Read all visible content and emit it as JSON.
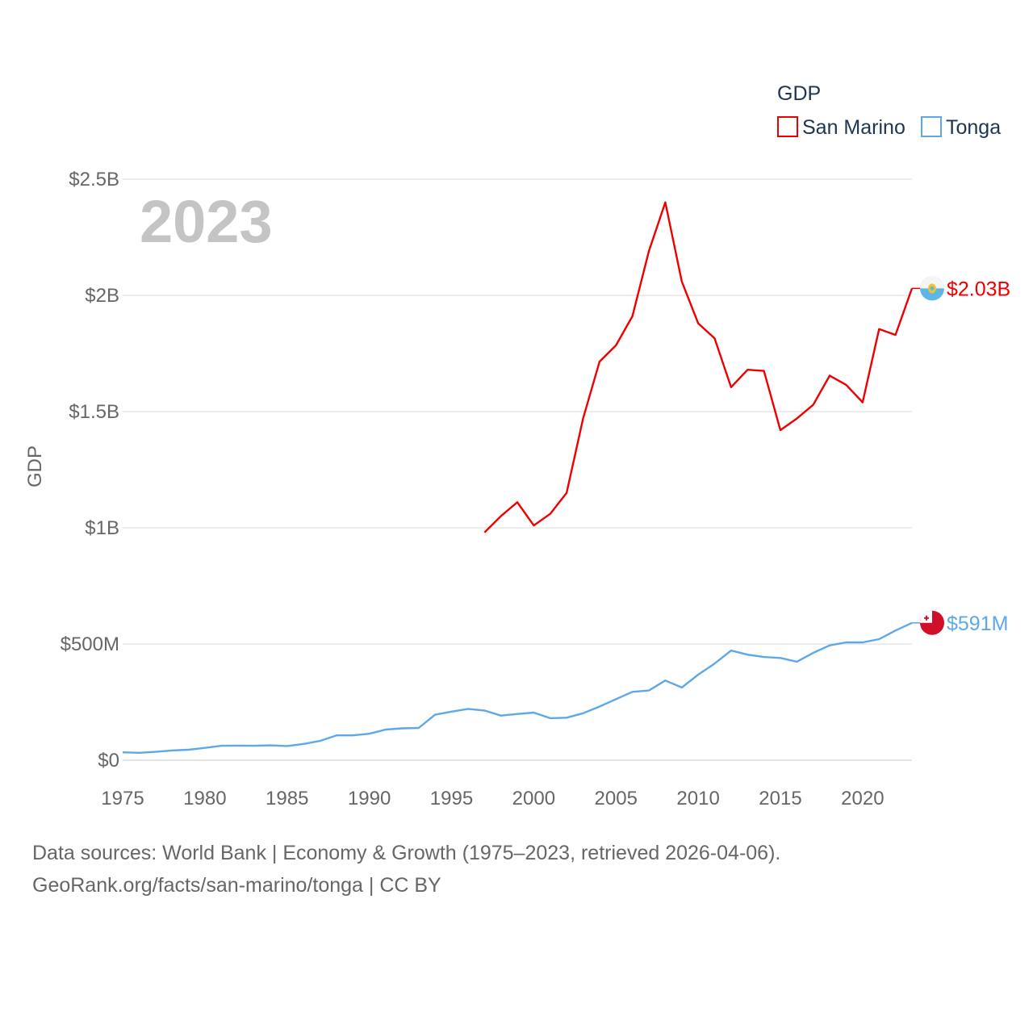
{
  "chart_data": {
    "type": "line",
    "year_label": "2023",
    "ylabel": "GDP",
    "ylim": [
      0,
      2500000000
    ],
    "xlim": [
      1975,
      2023
    ],
    "y_ticks": [
      {
        "value": 0,
        "label": "$0"
      },
      {
        "value": 500000000,
        "label": "$500M"
      },
      {
        "value": 1000000000,
        "label": "$1B"
      },
      {
        "value": 1500000000,
        "label": "$1.5B"
      },
      {
        "value": 2000000000,
        "label": "$2B"
      },
      {
        "value": 2500000000,
        "label": "$2.5B"
      }
    ],
    "x_ticks": [
      1975,
      1980,
      1985,
      1990,
      1995,
      2000,
      2005,
      2010,
      2015,
      2020
    ],
    "legend": {
      "title": "GDP",
      "position": "top-right"
    },
    "series": [
      {
        "name": "San Marino",
        "color": "#ee0000",
        "end_label": "$2.03B",
        "flag_icon": "san-marino-flag-icon",
        "x": [
          1997,
          1998,
          1999,
          2000,
          2001,
          2002,
          2003,
          2004,
          2005,
          2006,
          2007,
          2008,
          2009,
          2010,
          2011,
          2012,
          2013,
          2014,
          2015,
          2016,
          2017,
          2018,
          2019,
          2020,
          2021,
          2022,
          2023
        ],
        "values": [
          980000000,
          1050000000,
          1110000000,
          1010000000,
          1060000000,
          1150000000,
          1470000000,
          1715000000,
          1785000000,
          1910000000,
          2190000000,
          2400000000,
          2060000000,
          1880000000,
          1815000000,
          1605000000,
          1680000000,
          1675000000,
          1420000000,
          1470000000,
          1530000000,
          1655000000,
          1615000000,
          1540000000,
          1855000000,
          1830000000,
          2030000000
        ]
      },
      {
        "name": "Tonga",
        "color": "#5ea8e8",
        "end_label": "$591M",
        "flag_icon": "tonga-flag-icon",
        "x": [
          1975,
          1976,
          1977,
          1978,
          1979,
          1980,
          1981,
          1982,
          1983,
          1984,
          1985,
          1986,
          1987,
          1988,
          1989,
          1990,
          1991,
          1992,
          1993,
          1994,
          1995,
          1996,
          1997,
          1998,
          1999,
          2000,
          2001,
          2002,
          2003,
          2004,
          2005,
          2006,
          2007,
          2008,
          2009,
          2010,
          2011,
          2012,
          2013,
          2014,
          2015,
          2016,
          2017,
          2018,
          2019,
          2020,
          2021,
          2022,
          2023
        ],
        "values": [
          34000000,
          32000000,
          36000000,
          42000000,
          45000000,
          53000000,
          62000000,
          63000000,
          62000000,
          64000000,
          61000000,
          70000000,
          83000000,
          107000000,
          107000000,
          114000000,
          132000000,
          137000000,
          139000000,
          196000000,
          209000000,
          221000000,
          214000000,
          192000000,
          199000000,
          205000000,
          181000000,
          183000000,
          202000000,
          231000000,
          263000000,
          294000000,
          300000000,
          343000000,
          313000000,
          368000000,
          416000000,
          472000000,
          454000000,
          444000000,
          440000000,
          424000000,
          462000000,
          494000000,
          507000000,
          507000000,
          521000000,
          558000000,
          591000000
        ]
      }
    ]
  },
  "footer": {
    "line1": "Data sources: World Bank | Economy & Growth (1975–2023, retrieved 2026-04-06).",
    "line2": "GeoRank.org/facts/san-marino/tonga | CC BY"
  }
}
